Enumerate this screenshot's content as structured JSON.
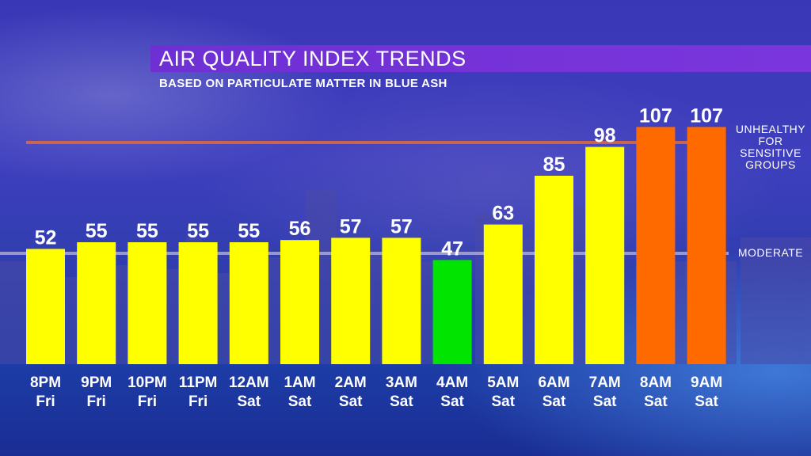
{
  "header": {
    "title": "AIR QUALITY INDEX TRENDS",
    "subtitle": "BASED ON PARTICULATE MATTER IN BLUE ASH"
  },
  "reference_lines": [
    {
      "value": 100,
      "label_lines": [
        "UNHEALTHY",
        "FOR",
        "SENSITIVE",
        "GROUPS"
      ],
      "color": "#e06a3c"
    },
    {
      "value": 50,
      "label_lines": [
        "MODERATE"
      ],
      "color": "#b9b6d6"
    }
  ],
  "colors": {
    "moderate": "#ffff00",
    "good": "#00e400",
    "usg": "#ff6a00"
  },
  "chart_data": {
    "type": "bar",
    "title": "AIR QUALITY INDEX TRENDS",
    "subtitle": "BASED ON PARTICULATE MATTER IN BLUE ASH",
    "categories": [
      [
        "8PM",
        "Fri"
      ],
      [
        "9PM",
        "Fri"
      ],
      [
        "10PM",
        "Fri"
      ],
      [
        "11PM",
        "Fri"
      ],
      [
        "12AM",
        "Sat"
      ],
      [
        "1AM",
        "Sat"
      ],
      [
        "2AM",
        "Sat"
      ],
      [
        "3AM",
        "Sat"
      ],
      [
        "4AM",
        "Sat"
      ],
      [
        "5AM",
        "Sat"
      ],
      [
        "6AM",
        "Sat"
      ],
      [
        "7AM",
        "Sat"
      ],
      [
        "8AM",
        "Sat"
      ],
      [
        "9AM",
        "Sat"
      ]
    ],
    "values": [
      52,
      55,
      55,
      55,
      55,
      56,
      57,
      57,
      47,
      63,
      85,
      98,
      107,
      107
    ],
    "bar_colors": [
      "#ffff00",
      "#ffff00",
      "#ffff00",
      "#ffff00",
      "#ffff00",
      "#ffff00",
      "#ffff00",
      "#ffff00",
      "#00e400",
      "#ffff00",
      "#ffff00",
      "#ffff00",
      "#ff6a00",
      "#ff6a00"
    ],
    "data_labels": true,
    "grid": false,
    "legend": "none"
  }
}
